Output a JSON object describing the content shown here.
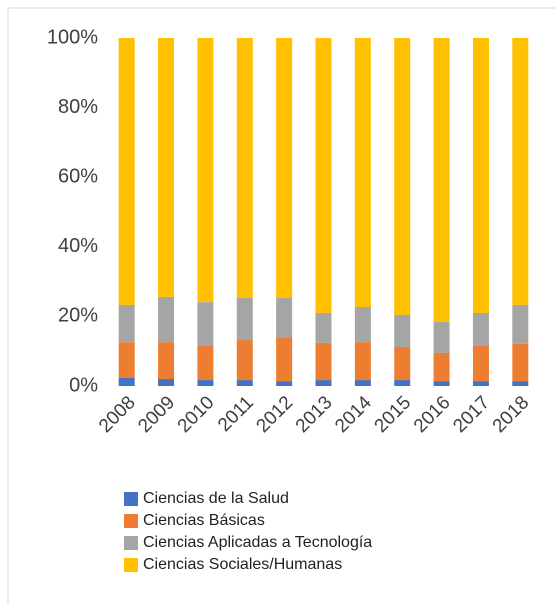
{
  "chart_data": {
    "type": "stacked_bar",
    "categories": [
      "2008",
      "2009",
      "2010",
      "2011",
      "2012",
      "2013",
      "2014",
      "2015",
      "2016",
      "2017",
      "2018"
    ],
    "series": [
      {
        "name": "Ciencias de la Salud",
        "color": "#4472c4",
        "values": [
          2.3,
          2.0,
          1.7,
          1.7,
          1.4,
          1.7,
          1.7,
          1.7,
          1.4,
          1.4,
          1.4
        ]
      },
      {
        "name": "Ciencias Básicas",
        "color": "#ed7d31",
        "values": [
          10.3,
          10.6,
          9.8,
          11.5,
          12.4,
          10.7,
          10.9,
          9.5,
          8.1,
          10.1,
          10.7
        ]
      },
      {
        "name": "Ciencias Aplicadas a Tecnología",
        "color": "#a5a5a5",
        "values": [
          10.7,
          13.0,
          12.6,
          12.1,
          11.5,
          8.6,
          10.1,
          9.2,
          8.9,
          9.5,
          11.2
        ]
      },
      {
        "name": "Ciencias Sociales/Humanas",
        "color": "#ffc000",
        "values": [
          76.7,
          74.4,
          75.9,
          74.7,
          74.7,
          79.0,
          77.3,
          79.6,
          81.6,
          79.0,
          76.7
        ]
      }
    ],
    "ylim": [
      0,
      100
    ],
    "yticks": [
      {
        "value": 0,
        "label": "0%"
      },
      {
        "value": 20,
        "label": "20%"
      },
      {
        "value": 40,
        "label": "40%"
      },
      {
        "value": 60,
        "label": "60%"
      },
      {
        "value": 80,
        "label": "80%"
      },
      {
        "value": 100,
        "label": "100%"
      }
    ],
    "legend": "bottom-left"
  }
}
